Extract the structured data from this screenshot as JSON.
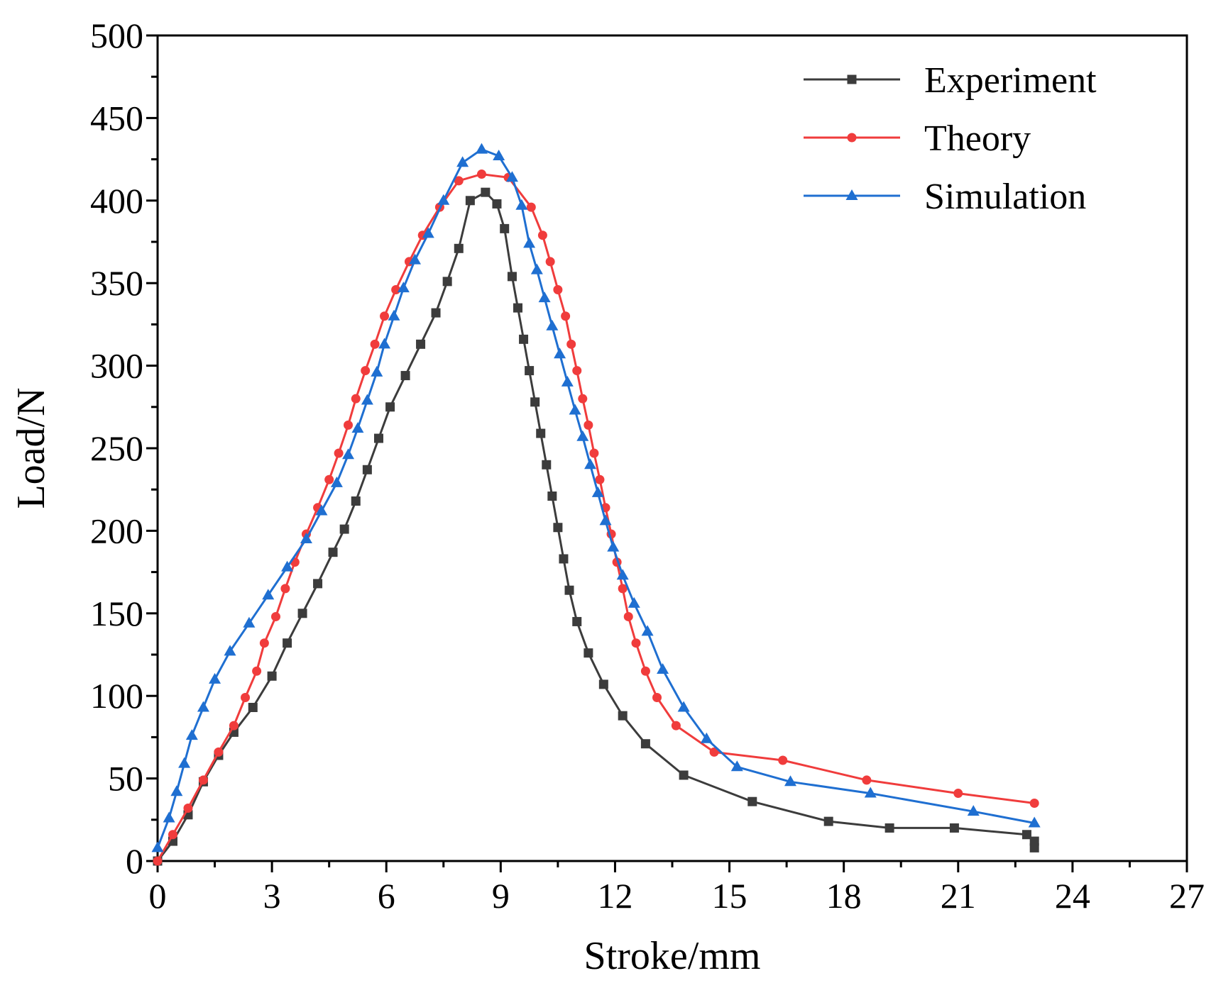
{
  "chart_data": {
    "type": "line",
    "title": "",
    "xlabel": "Stroke/mm",
    "ylabel": "Load/N",
    "xlim": [
      0,
      27
    ],
    "ylim": [
      0,
      500
    ],
    "xticks": [
      0,
      3,
      6,
      9,
      12,
      15,
      18,
      21,
      24,
      27
    ],
    "yticks": [
      0,
      50,
      100,
      150,
      200,
      250,
      300,
      350,
      400,
      450,
      500
    ],
    "grid": false,
    "legend": "top-right",
    "series": [
      {
        "name": "Experiment",
        "color": "#3c3c3c",
        "marker": "square",
        "x": [
          0,
          0.4,
          0.8,
          1.2,
          1.6,
          2.0,
          2.5,
          3.0,
          3.4,
          3.8,
          4.2,
          4.6,
          4.9,
          5.2,
          5.5,
          5.8,
          6.1,
          6.5,
          6.9,
          7.3,
          7.6,
          7.9,
          8.2,
          8.6,
          8.9,
          9.1,
          9.3,
          9.45,
          9.6,
          9.75,
          9.9,
          10.05,
          10.2,
          10.35,
          10.5,
          10.65,
          10.8,
          11.0,
          11.3,
          11.7,
          12.2,
          12.8,
          13.8,
          15.6,
          17.6,
          19.2,
          20.9,
          22.8,
          23.0
        ],
        "y": [
          0,
          12,
          28,
          48,
          64,
          78,
          93,
          112,
          132,
          150,
          168,
          187,
          201,
          218,
          237,
          256,
          275,
          294,
          313,
          332,
          351,
          371,
          400,
          405,
          398,
          383,
          354,
          335,
          316,
          297,
          278,
          259,
          240,
          221,
          202,
          183,
          164,
          145,
          126,
          107,
          88,
          71,
          52,
          36,
          24,
          20,
          20,
          16,
          12
        ],
        "x_end": [
          23.0
        ],
        "y_end": [
          8
        ]
      },
      {
        "name": "Theory",
        "color": "#f03c3c",
        "marker": "circle",
        "x": [
          0,
          0.4,
          0.8,
          1.2,
          1.6,
          2.0,
          2.3,
          2.6,
          2.8,
          3.1,
          3.35,
          3.6,
          3.9,
          4.2,
          4.5,
          4.75,
          5.0,
          5.2,
          5.45,
          5.7,
          5.95,
          6.25,
          6.6,
          6.95,
          7.4,
          7.9,
          8.5,
          9.2,
          9.8,
          10.1,
          10.3,
          10.5,
          10.7,
          10.85,
          11.0,
          11.15,
          11.3,
          11.45,
          11.6,
          11.75,
          11.9,
          12.05,
          12.2,
          12.35,
          12.55,
          12.8,
          13.1,
          13.6,
          14.6,
          16.4,
          18.6,
          21.0,
          23.0
        ],
        "y": [
          0,
          16,
          32,
          49,
          66,
          82,
          99,
          115,
          132,
          148,
          165,
          181,
          198,
          214,
          231,
          247,
          264,
          280,
          297,
          313,
          330,
          346,
          363,
          379,
          396,
          412,
          416,
          414,
          396,
          379,
          363,
          346,
          330,
          313,
          297,
          280,
          264,
          247,
          231,
          214,
          198,
          181,
          165,
          148,
          132,
          115,
          99,
          82,
          66,
          61,
          49,
          41,
          35
        ]
      },
      {
        "name": "Simulation",
        "color": "#1f6fd1",
        "marker": "triangle",
        "x": [
          0,
          0.3,
          0.5,
          0.7,
          0.9,
          1.2,
          1.5,
          1.9,
          2.4,
          2.9,
          3.4,
          3.9,
          4.3,
          4.7,
          5.0,
          5.25,
          5.5,
          5.75,
          5.95,
          6.2,
          6.45,
          6.75,
          7.1,
          7.5,
          8.0,
          8.5,
          8.95,
          9.3,
          9.55,
          9.75,
          9.95,
          10.15,
          10.35,
          10.55,
          10.75,
          10.95,
          11.15,
          11.35,
          11.55,
          11.75,
          11.95,
          12.2,
          12.5,
          12.85,
          13.25,
          13.8,
          14.4,
          15.2,
          16.6,
          18.7,
          21.4,
          23.0
        ],
        "y": [
          8,
          26,
          42,
          59,
          76,
          93,
          110,
          127,
          144,
          161,
          178,
          195,
          212,
          229,
          246,
          262,
          279,
          296,
          313,
          330,
          347,
          364,
          380,
          400,
          423,
          431,
          427,
          414,
          397,
          374,
          358,
          341,
          324,
          307,
          290,
          273,
          257,
          240,
          223,
          206,
          190,
          173,
          156,
          139,
          116,
          93,
          74,
          57,
          48,
          41,
          30,
          23
        ]
      }
    ]
  }
}
